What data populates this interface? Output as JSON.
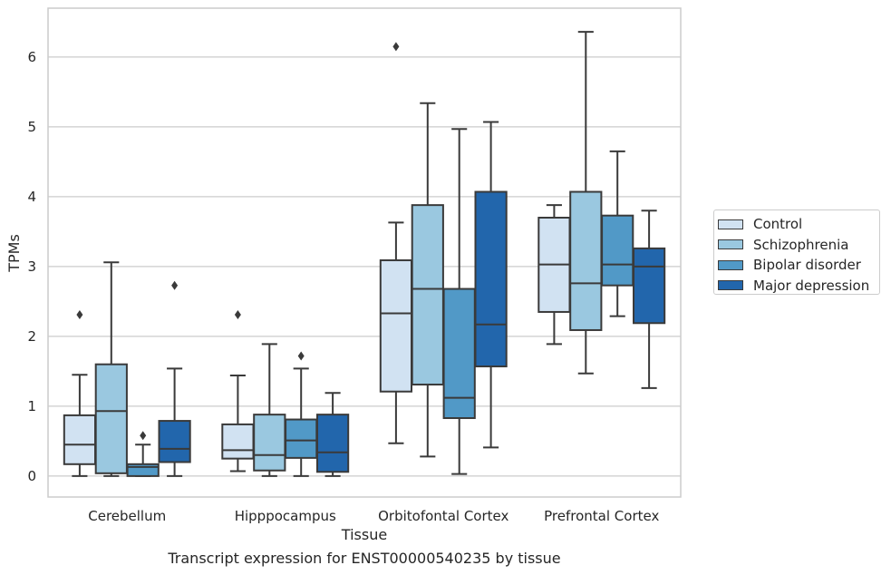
{
  "chart_data": {
    "type": "box",
    "title": "",
    "xlabel": "Tissue",
    "ylabel": "TPMs",
    "caption": "Transcript expression for ENST00000540235 by tissue",
    "ylim": [
      -0.3,
      6.7
    ],
    "yticks": [
      0,
      1,
      2,
      3,
      4,
      5,
      6
    ],
    "grid": true,
    "legend_position": "right",
    "categories": [
      "Cerebellum",
      "Hipppocampus",
      "Orbitofontal Cortex",
      "Prefrontal Cortex"
    ],
    "series": [
      {
        "name": "Control",
        "color": "#d1e2f2",
        "boxes": [
          {
            "whislo": 0.0,
            "q1": 0.17,
            "med": 0.45,
            "q3": 0.87,
            "whishi": 1.45,
            "fliers": [
              2.31
            ]
          },
          {
            "whislo": 0.07,
            "q1": 0.25,
            "med": 0.37,
            "q3": 0.74,
            "whishi": 1.44,
            "fliers": [
              2.31
            ]
          },
          {
            "whislo": 0.47,
            "q1": 1.21,
            "med": 2.33,
            "q3": 3.09,
            "whishi": 3.63,
            "fliers": [
              6.15
            ]
          },
          {
            "whislo": 1.89,
            "q1": 2.35,
            "med": 3.03,
            "q3": 3.7,
            "whishi": 3.88,
            "fliers": []
          }
        ]
      },
      {
        "name": "Schizophrenia",
        "color": "#9ac8e0",
        "boxes": [
          {
            "whislo": 0.0,
            "q1": 0.04,
            "med": 0.93,
            "q3": 1.6,
            "whishi": 3.06,
            "fliers": []
          },
          {
            "whislo": 0.0,
            "q1": 0.08,
            "med": 0.3,
            "q3": 0.88,
            "whishi": 1.89,
            "fliers": []
          },
          {
            "whislo": 0.28,
            "q1": 1.31,
            "med": 2.68,
            "q3": 3.88,
            "whishi": 5.34,
            "fliers": []
          },
          {
            "whislo": 1.47,
            "q1": 2.09,
            "med": 2.76,
            "q3": 4.07,
            "whishi": 6.36,
            "fliers": []
          }
        ]
      },
      {
        "name": "Bipolar disorder",
        "color": "#5199c7",
        "boxes": [
          {
            "whislo": 0.0,
            "q1": 0.0,
            "med": 0.13,
            "q3": 0.17,
            "whishi": 0.45,
            "fliers": [
              0.58
            ]
          },
          {
            "whislo": 0.0,
            "q1": 0.26,
            "med": 0.51,
            "q3": 0.81,
            "whishi": 1.54,
            "fliers": [
              1.72
            ]
          },
          {
            "whislo": 0.03,
            "q1": 0.83,
            "med": 1.12,
            "q3": 2.68,
            "whishi": 4.97,
            "fliers": []
          },
          {
            "whislo": 2.29,
            "q1": 2.73,
            "med": 3.03,
            "q3": 3.73,
            "whishi": 4.65,
            "fliers": []
          }
        ]
      },
      {
        "name": "Major depression",
        "color": "#2266ac",
        "boxes": [
          {
            "whislo": 0.0,
            "q1": 0.2,
            "med": 0.39,
            "q3": 0.79,
            "whishi": 1.54,
            "fliers": [
              2.73
            ]
          },
          {
            "whislo": 0.0,
            "q1": 0.06,
            "med": 0.34,
            "q3": 0.88,
            "whishi": 1.19,
            "fliers": []
          },
          {
            "whislo": 0.41,
            "q1": 1.57,
            "med": 2.17,
            "q3": 4.07,
            "whishi": 5.07,
            "fliers": []
          },
          {
            "whislo": 1.26,
            "q1": 2.19,
            "med": 3.0,
            "q3": 3.26,
            "whishi": 3.8,
            "fliers": []
          }
        ]
      }
    ]
  }
}
